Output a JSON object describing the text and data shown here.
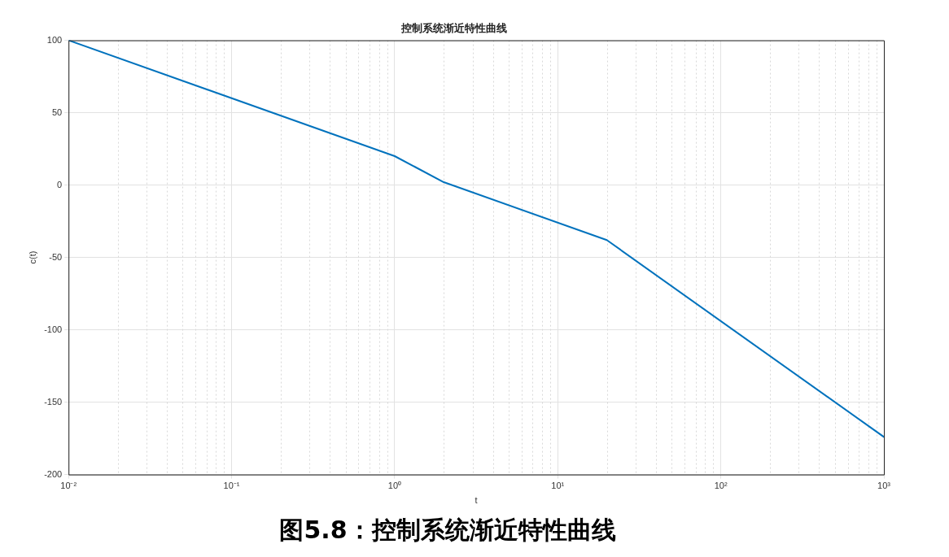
{
  "chart_data": {
    "type": "line",
    "title": "控制系统渐近特性曲线",
    "xlabel": "t",
    "ylabel": "c(t)",
    "log": "x",
    "x": [
      0.01,
      1,
      2,
      20,
      1000
    ],
    "series": [
      {
        "color": "#0072bd",
        "values": [
          100,
          20,
          2,
          -38,
          -174
        ]
      }
    ],
    "xlim": [
      0.01,
      1000
    ],
    "xticks": [
      {
        "value": 0.01,
        "label": "10⁻²"
      },
      {
        "value": 0.1,
        "label": "10⁻¹"
      },
      {
        "value": 1,
        "label": "10⁰"
      },
      {
        "value": 10,
        "label": "10¹"
      },
      {
        "value": 100,
        "label": "10²"
      },
      {
        "value": 1000,
        "label": "10³"
      }
    ],
    "ylim": [
      -200,
      100
    ],
    "yticks": [
      -200,
      -150,
      -100,
      -50,
      0,
      50,
      100
    ],
    "grid": true,
    "legend": false,
    "marker": "none",
    "line_style": "solid",
    "annotations": [
      "图5.8：控制系统渐近特性曲线"
    ]
  }
}
